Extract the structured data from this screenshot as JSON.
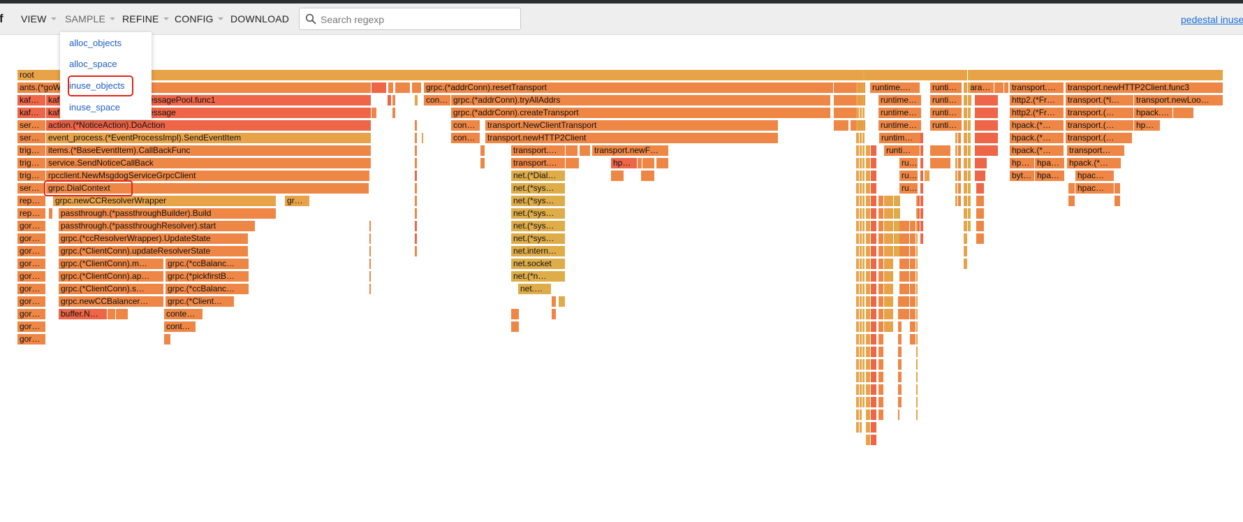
{
  "header": {
    "logo": "f",
    "menus": [
      {
        "label": "VIEW",
        "has_caret": true
      },
      {
        "label": "SAMPLE",
        "has_caret": true
      },
      {
        "label": "REFINE",
        "has_caret": true
      },
      {
        "label": "CONFIG",
        "has_caret": true
      },
      {
        "label": "DOWNLOAD",
        "has_caret": false
      }
    ],
    "search": {
      "placeholder": "Search regexp",
      "value": ""
    },
    "title_link": "pedestal inuse"
  },
  "sample_menu": {
    "items": [
      "alloc_objects",
      "alloc_space",
      "inuse_objects",
      "inuse_space"
    ],
    "selected": "inuse_objects"
  },
  "colors": {
    "pale": "#e8a349",
    "orange": "#ee8745",
    "red": "#ee6547",
    "gold": "#deac49",
    "highlight": "#e2231a",
    "link": "#1a6fd8"
  },
  "flame": {
    "frames": [
      {
        "label": "root",
        "c": "pale"
      },
      {
        "label": "ants.(*goWorker).run.func1",
        "c": "orange"
      },
      {
        "label": "kaf…",
        "c": "red"
      },
      {
        "label": "kafka.(*KafkaConsumer).MessagePool.func1",
        "c": "red"
      },
      {
        "label": "kaf…",
        "c": "red"
      },
      {
        "label": "kafka.(*KafkaConsumer).Message",
        "c": "red"
      },
      {
        "label": "ser…",
        "c": "orange"
      },
      {
        "label": "action.(*NoticeAction).DoAction",
        "c": "red"
      },
      {
        "label": "ser…",
        "c": "orange"
      },
      {
        "label": "event_process.(*EventProcessImpl).SendEventItem",
        "c": "pale"
      },
      {
        "label": "trig…",
        "c": "orange"
      },
      {
        "label": "items.(*BaseEventItem).CallBackFunc",
        "c": "orange"
      },
      {
        "label": "trig…",
        "c": "orange"
      },
      {
        "label": "service.SendNoticeCallBack",
        "c": "orange"
      },
      {
        "label": "trig…",
        "c": "orange"
      },
      {
        "label": "rpcclient.NewMsgdogServiceGrpcClient",
        "c": "orange"
      },
      {
        "label": "ser…",
        "c": "orange"
      },
      {
        "label": "grpc.DialContext",
        "c": "orange"
      },
      {
        "label": "rep…",
        "c": "orange"
      },
      {
        "label": "grpc.newCCResolverWrapper",
        "c": "pale"
      },
      {
        "label": "gr…",
        "c": "pale"
      },
      {
        "label": "rep…",
        "c": "orange"
      },
      {
        "label": "passthrough.(*passthroughBuilder).Build",
        "c": "orange"
      },
      {
        "label": "gor…",
        "c": "orange"
      },
      {
        "label": "passthrough.(*passthroughResolver).start",
        "c": "orange"
      },
      {
        "label": "gor…",
        "c": "orange"
      },
      {
        "label": "grpc.(*ccResolverWrapper).UpdateState",
        "c": "orange"
      },
      {
        "label": "gor…",
        "c": "orange"
      },
      {
        "label": "grpc.(*ClientConn).updateResolverState",
        "c": "orange"
      },
      {
        "label": "gor…",
        "c": "orange"
      },
      {
        "label": "grpc.(*ClientConn).m…",
        "c": "orange"
      },
      {
        "label": "grpc.(*ccBalanc…",
        "c": "orange"
      },
      {
        "label": "gor…",
        "c": "orange"
      },
      {
        "label": "grpc.(*ClientConn).ap…",
        "c": "orange"
      },
      {
        "label": "grpc.(*pickfirstB…",
        "c": "orange"
      },
      {
        "label": "gor…",
        "c": "orange"
      },
      {
        "label": "grpc.(*ClientConn).s…",
        "c": "orange"
      },
      {
        "label": "grpc.(*ccBalanc…",
        "c": "orange"
      },
      {
        "label": "gor…",
        "c": "orange"
      },
      {
        "label": "grpc.newCCBalancer…",
        "c": "orange"
      },
      {
        "label": "grpc.(*Client…",
        "c": "orange"
      },
      {
        "label": "gor…",
        "c": "orange"
      },
      {
        "label": "buffer.N…",
        "c": "red"
      },
      {
        "label": "conte…",
        "c": "orange"
      },
      {
        "label": "gor…",
        "c": "orange"
      },
      {
        "label": "cont…",
        "c": "orange"
      },
      {
        "label": "gor…",
        "c": "orange"
      },
      {
        "label": "grpc.(*addrConn).resetTransport",
        "c": "orange"
      },
      {
        "label": "con…",
        "c": "orange"
      },
      {
        "label": "grpc.(*addrConn).tryAllAddrs",
        "c": "orange"
      },
      {
        "label": "grpc.(*addrConn).createTransport",
        "c": "orange"
      },
      {
        "label": "con…",
        "c": "orange"
      },
      {
        "label": "transport.NewClientTransport",
        "c": "orange"
      },
      {
        "label": "con…",
        "c": "orange"
      },
      {
        "label": "transport.newHTTP2Client",
        "c": "orange"
      },
      {
        "label": "transport.…",
        "c": "orange"
      },
      {
        "label": "transport.newF…",
        "c": "orange"
      },
      {
        "label": "transport.…",
        "c": "orange"
      },
      {
        "label": "hp…",
        "c": "red"
      },
      {
        "label": "net.(*Dial…",
        "c": "gold"
      },
      {
        "label": "net.(*sys…",
        "c": "gold"
      },
      {
        "label": "net.(*sys…",
        "c": "gold"
      },
      {
        "label": "net.(*sys…",
        "c": "gold"
      },
      {
        "label": "net.(*sys…",
        "c": "gold"
      },
      {
        "label": "net.(*sys…",
        "c": "gold"
      },
      {
        "label": "net.intern…",
        "c": "gold"
      },
      {
        "label": "net.socket",
        "c": "gold"
      },
      {
        "label": "net.(*n…",
        "c": "gold"
      },
      {
        "label": "net.…",
        "c": "gold"
      },
      {
        "label": "runtime.…",
        "c": "orange"
      },
      {
        "label": "runtime…",
        "c": "orange"
      },
      {
        "label": "runtime…",
        "c": "orange"
      },
      {
        "label": "runtime…",
        "c": "orange"
      },
      {
        "label": "runtim…",
        "c": "orange"
      },
      {
        "label": "runti…",
        "c": "orange"
      },
      {
        "label": "ru…",
        "c": "orange"
      },
      {
        "label": "ru…",
        "c": "orange"
      },
      {
        "label": "ru…",
        "c": "orange"
      },
      {
        "label": "runti…",
        "c": "orange"
      },
      {
        "label": "runti…",
        "c": "orange"
      },
      {
        "label": "runti…",
        "c": "orange"
      },
      {
        "label": "runti…",
        "c": "orange"
      },
      {
        "label": "sara…",
        "c": "orange"
      },
      {
        "label": "transport.…",
        "c": "orange"
      },
      {
        "label": "transport.newHTTP2Client.func3",
        "c": "orange"
      },
      {
        "label": "http2.(*Fr…",
        "c": "orange"
      },
      {
        "label": "transport.(*l…",
        "c": "orange"
      },
      {
        "label": "transport.newLoo…",
        "c": "orange"
      },
      {
        "label": "http2.(*Fr…",
        "c": "orange"
      },
      {
        "label": "transport.(…",
        "c": "orange"
      },
      {
        "label": "hpack.…",
        "c": "orange"
      },
      {
        "label": "hpack.(*…",
        "c": "orange"
      },
      {
        "label": "transport.(…",
        "c": "orange"
      },
      {
        "label": "hp…",
        "c": "orange"
      },
      {
        "label": "hpack.(*…",
        "c": "orange"
      },
      {
        "label": "transport.(…",
        "c": "orange"
      },
      {
        "label": "hpack.(*…",
        "c": "orange"
      },
      {
        "label": "transport…",
        "c": "orange"
      },
      {
        "label": "hp…",
        "c": "orange"
      },
      {
        "label": "hpa…",
        "c": "orange"
      },
      {
        "label": "hpack.(*…",
        "c": "orange"
      },
      {
        "label": "byt…",
        "c": "orange"
      },
      {
        "label": "hpa…",
        "c": "orange"
      },
      {
        "label": "hpac…",
        "c": "orange"
      },
      {
        "label": "hpac…",
        "c": "orange"
      }
    ]
  }
}
